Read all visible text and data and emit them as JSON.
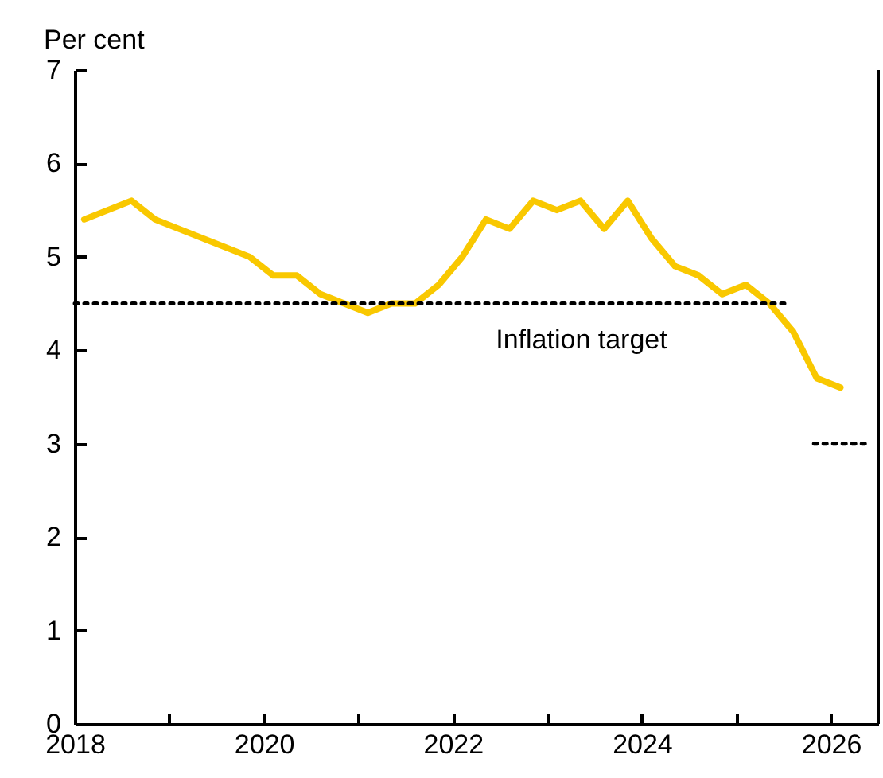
{
  "chart_data": {
    "type": "line",
    "ylabel": "Per cent",
    "xlim": [
      2018,
      2026.5
    ],
    "ylim": [
      0,
      7
    ],
    "xticks": [
      2018,
      {
        "value": 2019,
        "label": null
      },
      2020,
      {
        "value": 2021,
        "label": null
      },
      2022,
      {
        "value": 2023,
        "label": null
      },
      2024,
      {
        "value": 2025,
        "label": null
      },
      2026
    ],
    "yticks": [
      0,
      1,
      2,
      3,
      4,
      5,
      6,
      7
    ],
    "grid": false,
    "marker": "none",
    "series": [
      {
        "color": "#f9c800",
        "line_style": "solid",
        "x": [
          2018.1,
          2018.35,
          2018.6,
          2018.85,
          2019.1,
          2019.35,
          2019.6,
          2019.85,
          2020.1,
          2020.35,
          2020.6,
          2020.85,
          2021.1,
          2021.35,
          2021.6,
          2021.85,
          2022.1,
          2022.35,
          2022.6,
          2022.85,
          2023.1,
          2023.35,
          2023.6,
          2023.85,
          2024.1,
          2024.35,
          2024.6,
          2024.85,
          2025.1,
          2025.35,
          2025.6,
          2025.85,
          2026.1
        ],
        "values": [
          5.4,
          5.5,
          5.6,
          5.4,
          5.3,
          5.2,
          5.1,
          5.0,
          4.8,
          4.8,
          4.6,
          4.5,
          4.4,
          4.5,
          4.5,
          4.7,
          5.0,
          5.4,
          5.3,
          5.6,
          5.5,
          5.6,
          5.3,
          5.6,
          5.2,
          4.9,
          4.8,
          4.6,
          4.7,
          4.5,
          4.2,
          3.7,
          3.6
        ]
      },
      {
        "name": "Inflation target",
        "color": "#000000",
        "line_style": "dotted",
        "x": [
          2018,
          2025.55,
          2025.7,
          2025.82,
          2026.36
        ],
        "values": [
          4.5,
          4.5,
          null,
          3,
          3
        ]
      }
    ]
  }
}
